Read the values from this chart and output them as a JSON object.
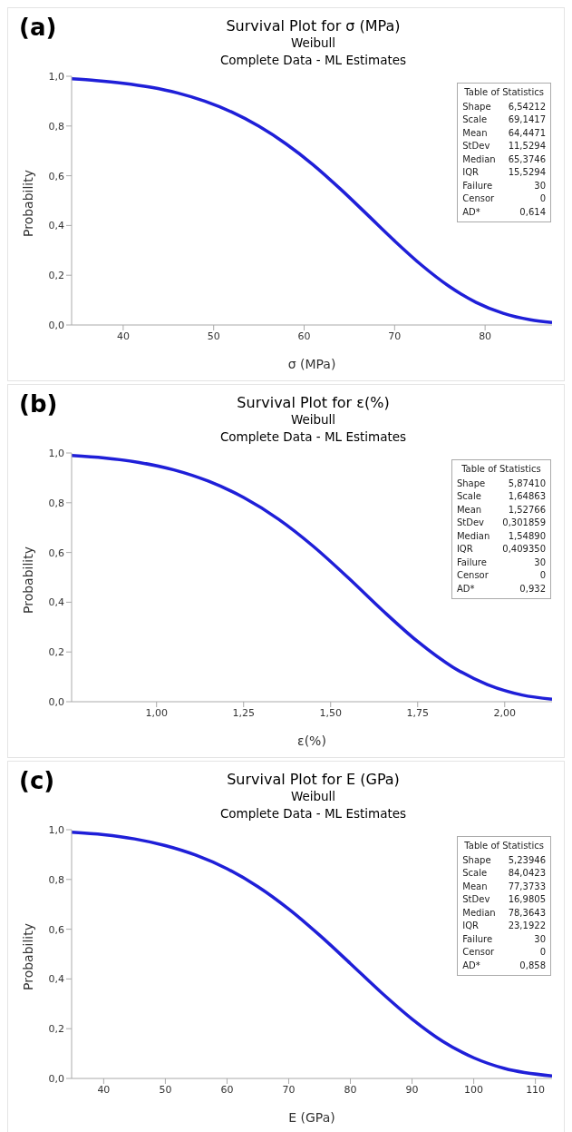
{
  "chart_data": [
    {
      "type": "line",
      "title": "Survival Plot for σ (MPa)",
      "subtitle": "Weibull\nComplete Data - ML Estimates",
      "xlabel": "σ (MPa)",
      "ylabel": "Probability",
      "annotations": [
        "(a)",
        "Table of Statistics",
        "Shape",
        "6,54212",
        "Scale",
        "69,1417",
        "Mean",
        "64,4471",
        "StDev",
        "11,5294",
        "Median",
        "65,3746",
        "IQR",
        "15,5294",
        "Failure",
        "30",
        "Censor",
        "0",
        "AD*",
        "0,614"
      ],
      "x": [
        34.3,
        37,
        40,
        43,
        46,
        49,
        52,
        55,
        58,
        61,
        64,
        67,
        70,
        73,
        76,
        79,
        82,
        85,
        87.4
      ],
      "series": [
        {
          "color": "#1f1fd8",
          "values": [
            0.99,
            0.983,
            0.972,
            0.956,
            0.933,
            0.9,
            0.856,
            0.799,
            0.728,
            0.644,
            0.547,
            0.443,
            0.338,
            0.24,
            0.156,
            0.091,
            0.047,
            0.021,
            0.01
          ]
        }
      ],
      "xlim": [
        34.3,
        87.4
      ],
      "xticks": [
        40,
        50,
        60,
        70,
        80
      ],
      "ylim": [
        0,
        1
      ],
      "yticks": [
        {
          "value": 0,
          "label": "0,0"
        },
        {
          "value": 0.2,
          "label": "0,2"
        },
        {
          "value": 0.4,
          "label": "0,4"
        },
        {
          "value": 0.6,
          "label": "0,6"
        },
        {
          "value": 0.8,
          "label": "0,8"
        },
        {
          "value": 1,
          "label": "1,0"
        }
      ],
      "grid": false,
      "legend": false,
      "marker": "none",
      "line_style": "solid"
    },
    {
      "type": "line",
      "title": "Survival Plot for ε(%)",
      "subtitle": "Weibull\nComplete Data - ML Estimates",
      "xlabel": "ε(%)",
      "ylabel": "Probability",
      "annotations": [
        "(b)",
        "Table of Statistics",
        "Shape",
        "5,87410",
        "Scale",
        "1,64863",
        "Mean",
        "1,52766",
        "StDev",
        "0,301859",
        "Median",
        "1,54890",
        "IQR",
        "0,409350",
        "Failure",
        "30",
        "Censor",
        "0",
        "AD*",
        "0,932"
      ],
      "x": [
        0.756,
        0.85,
        0.95,
        1.05,
        1.15,
        1.25,
        1.35,
        1.45,
        1.55,
        1.65,
        1.75,
        1.85,
        1.95,
        2.05,
        2.136
      ],
      "series": [
        {
          "color": "#1f1fd8",
          "values": [
            0.99,
            0.98,
            0.962,
            0.932,
            0.886,
            0.821,
            0.734,
            0.625,
            0.499,
            0.366,
            0.242,
            0.14,
            0.069,
            0.027,
            0.01
          ]
        }
      ],
      "xlim": [
        0.756,
        2.136
      ],
      "xticks": [
        {
          "value": 1,
          "label": "1,00"
        },
        {
          "value": 1.25,
          "label": "1,25"
        },
        {
          "value": 1.5,
          "label": "1,50"
        },
        {
          "value": 1.75,
          "label": "1,75"
        },
        {
          "value": 2,
          "label": "2,00"
        }
      ],
      "ylim": [
        0,
        1
      ],
      "yticks": [
        {
          "value": 0,
          "label": "0,0"
        },
        {
          "value": 0.2,
          "label": "0,2"
        },
        {
          "value": 0.4,
          "label": "0,4"
        },
        {
          "value": 0.6,
          "label": "0,6"
        },
        {
          "value": 0.8,
          "label": "0,8"
        },
        {
          "value": 1,
          "label": "1,0"
        }
      ],
      "grid": false,
      "legend": false,
      "marker": "none",
      "line_style": "solid"
    },
    {
      "type": "line",
      "title": "Survival Plot for E (GPa)",
      "subtitle": "Weibull\nComplete Data - ML Estimates",
      "xlabel": "E (GPa)",
      "ylabel": "Probability",
      "annotations": [
        "(c)",
        "Table of Statistics",
        "Shape",
        "5,23946",
        "Scale",
        "84,0423",
        "Mean",
        "77,3733",
        "StDev",
        "16,9805",
        "Median",
        "78,3643",
        "IQR",
        "23,1922",
        "Failure",
        "30",
        "Censor",
        "0",
        "AD*",
        "0,858"
      ],
      "x": [
        34.8,
        40,
        45,
        50,
        55,
        60,
        65,
        70,
        75,
        80,
        85,
        90,
        95,
        100,
        105,
        112.7
      ],
      "series": [
        {
          "color": "#1f1fd8",
          "values": [
            0.99,
            0.98,
            0.963,
            0.936,
            0.897,
            0.843,
            0.771,
            0.681,
            0.576,
            0.462,
            0.346,
            0.239,
            0.149,
            0.083,
            0.04,
            0.01
          ]
        }
      ],
      "xlim": [
        34.8,
        112.7
      ],
      "xticks": [
        40,
        50,
        60,
        70,
        80,
        90,
        100,
        110
      ],
      "ylim": [
        0,
        1
      ],
      "yticks": [
        {
          "value": 0,
          "label": "0,0"
        },
        {
          "value": 0.2,
          "label": "0,2"
        },
        {
          "value": 0.4,
          "label": "0,4"
        },
        {
          "value": 0.6,
          "label": "0,6"
        },
        {
          "value": 0.8,
          "label": "0,8"
        },
        {
          "value": 1,
          "label": "1,0"
        }
      ],
      "grid": false,
      "legend": false,
      "marker": "none",
      "line_style": "solid"
    }
  ]
}
